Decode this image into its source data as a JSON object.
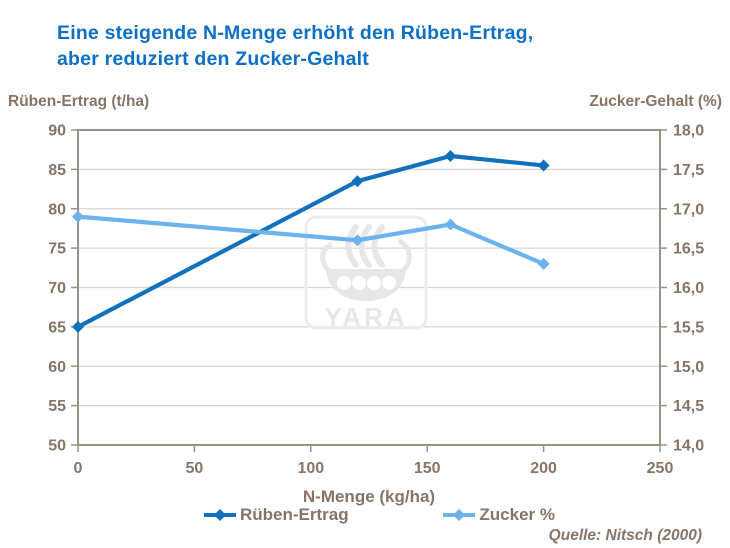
{
  "title": {
    "lines": [
      "Eine steigende N-Menge erhöht den Rüben-Ertrag,",
      "aber reduziert den Zucker-Gehalt"
    ]
  },
  "source": {
    "text": "Quelle: Nitsch (2000)"
  },
  "watermark": {
    "text": "YARA"
  },
  "colors": {
    "background": "#ffffff",
    "title": "#0d70c5",
    "text": "#867566",
    "grid": "#dcd6ce",
    "frame": "#9c9184",
    "watermark": "#e7e7e7"
  },
  "chart_data": {
    "type": "line",
    "title": "Eine steigende N-Menge erhöht den Rüben-Ertrag, aber reduziert den Zucker-Gehalt",
    "x": [
      0,
      120,
      160,
      200
    ],
    "series": [
      {
        "name": "Rüben-Ertrag",
        "axis": "left",
        "color": "#1171bd",
        "values": [
          65,
          83.5,
          86.7,
          85.5
        ]
      },
      {
        "name": "Zucker %",
        "axis": "right",
        "color": "#6cb2ec",
        "values": [
          16.9,
          16.6,
          16.8,
          16.3
        ]
      }
    ],
    "x_axis": {
      "label": "N-Menge (kg/ha)",
      "min": 0,
      "max": 250,
      "tick_values": [
        0,
        50,
        100,
        150,
        200,
        250
      ],
      "tick_labels": [
        "0",
        "50",
        "100",
        "150",
        "200",
        "250"
      ]
    },
    "left_axis": {
      "label": "Rüben-Ertrag (t/ha)",
      "min": 50,
      "max": 90,
      "tick_values": [
        50,
        55,
        60,
        65,
        70,
        75,
        80,
        85,
        90
      ],
      "tick_labels": [
        "50",
        "55",
        "60",
        "65",
        "70",
        "75",
        "80",
        "85",
        "90"
      ]
    },
    "right_axis": {
      "label": "Zucker-Gehalt (%)",
      "min": 14,
      "max": 18,
      "tick_values": [
        14,
        14.5,
        15,
        15.5,
        16,
        16.5,
        17,
        17.5,
        18
      ],
      "tick_labels": [
        "14,0",
        "14,5",
        "15,0",
        "15,5",
        "16,0",
        "16,5",
        "17,0",
        "17,5",
        "18,0"
      ]
    },
    "grid": true,
    "legend_position": "bottom"
  }
}
